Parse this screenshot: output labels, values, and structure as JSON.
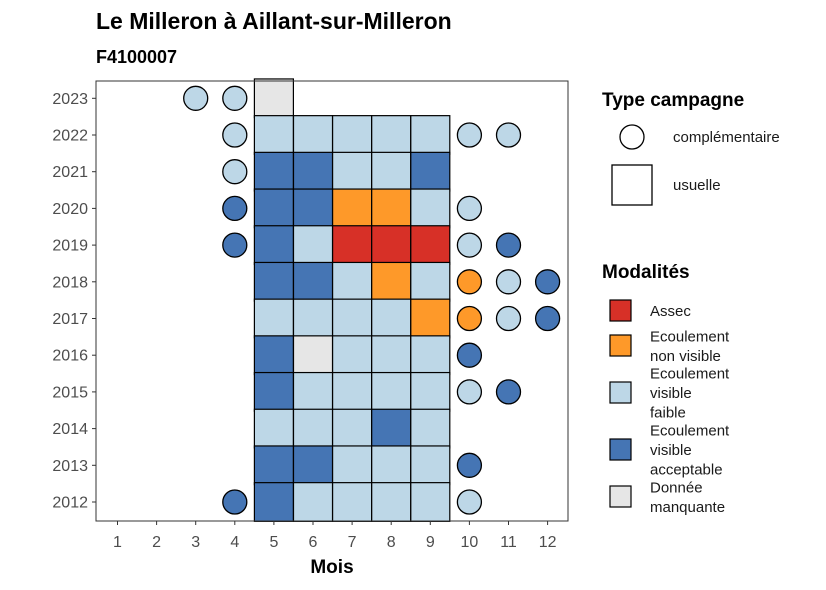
{
  "chart_data": {
    "type": "heatmap",
    "title": "Le Milleron à Aillant-sur-Milleron",
    "subtitle": "F4100007",
    "xlabel": "Mois",
    "ylabel": "",
    "x_ticks": [
      "1",
      "2",
      "3",
      "4",
      "5",
      "6",
      "7",
      "8",
      "9",
      "10",
      "11",
      "12"
    ],
    "y_ticks": [
      "2012",
      "2013",
      "2014",
      "2015",
      "2016",
      "2017",
      "2018",
      "2019",
      "2020",
      "2021",
      "2022",
      "2023"
    ],
    "colors": {
      "Assec": "#d73027",
      "Ecoulement non visible": "#fe9929",
      "Ecoulement visible faible": "#bdd7e7",
      "Ecoulement visible acceptable": "#4575b4",
      "Donnée manquante": "#e6e6e6"
    },
    "legend_campaign": {
      "title": "Type campagne",
      "items": [
        {
          "label": "complémentaire",
          "shape": "circle"
        },
        {
          "label": "usuelle",
          "shape": "square"
        }
      ]
    },
    "legend_modality": {
      "title": "Modalités",
      "items": [
        {
          "key": "Assec",
          "lines": [
            "Assec"
          ]
        },
        {
          "key": "Ecoulement non visible",
          "lines": [
            "Ecoulement",
            "non visible"
          ]
        },
        {
          "key": "Ecoulement visible faible",
          "lines": [
            "Ecoulement",
            "visible",
            "faible"
          ]
        },
        {
          "key": "Ecoulement visible acceptable",
          "lines": [
            "Ecoulement",
            "visible",
            "acceptable"
          ]
        },
        {
          "key": "Donnée manquante",
          "lines": [
            "Donnée",
            "manquante"
          ]
        }
      ]
    },
    "points": [
      {
        "year": 2023,
        "month": 3,
        "campaign": "complémentaire",
        "modality": "Ecoulement visible faible"
      },
      {
        "year": 2023,
        "month": 4,
        "campaign": "complémentaire",
        "modality": "Ecoulement visible faible"
      },
      {
        "year": 2023,
        "month": 5,
        "campaign": "usuelle",
        "modality": "Donnée manquante"
      },
      {
        "year": 2022,
        "month": 4,
        "campaign": "complémentaire",
        "modality": "Ecoulement visible faible"
      },
      {
        "year": 2022,
        "month": 5,
        "campaign": "usuelle",
        "modality": "Ecoulement visible faible"
      },
      {
        "year": 2022,
        "month": 6,
        "campaign": "usuelle",
        "modality": "Ecoulement visible faible"
      },
      {
        "year": 2022,
        "month": 7,
        "campaign": "usuelle",
        "modality": "Ecoulement visible faible"
      },
      {
        "year": 2022,
        "month": 8,
        "campaign": "usuelle",
        "modality": "Ecoulement visible faible"
      },
      {
        "year": 2022,
        "month": 9,
        "campaign": "usuelle",
        "modality": "Ecoulement visible faible"
      },
      {
        "year": 2022,
        "month": 10,
        "campaign": "complémentaire",
        "modality": "Ecoulement visible faible"
      },
      {
        "year": 2022,
        "month": 11,
        "campaign": "complémentaire",
        "modality": "Ecoulement visible faible"
      },
      {
        "year": 2021,
        "month": 4,
        "campaign": "complémentaire",
        "modality": "Ecoulement visible faible"
      },
      {
        "year": 2021,
        "month": 5,
        "campaign": "usuelle",
        "modality": "Ecoulement visible acceptable"
      },
      {
        "year": 2021,
        "month": 6,
        "campaign": "usuelle",
        "modality": "Ecoulement visible acceptable"
      },
      {
        "year": 2021,
        "month": 7,
        "campaign": "usuelle",
        "modality": "Ecoulement visible faible"
      },
      {
        "year": 2021,
        "month": 8,
        "campaign": "usuelle",
        "modality": "Ecoulement visible faible"
      },
      {
        "year": 2021,
        "month": 9,
        "campaign": "usuelle",
        "modality": "Ecoulement visible acceptable"
      },
      {
        "year": 2020,
        "month": 4,
        "campaign": "complémentaire",
        "modality": "Ecoulement visible acceptable"
      },
      {
        "year": 2020,
        "month": 5,
        "campaign": "usuelle",
        "modality": "Ecoulement visible acceptable"
      },
      {
        "year": 2020,
        "month": 6,
        "campaign": "usuelle",
        "modality": "Ecoulement visible acceptable"
      },
      {
        "year": 2020,
        "month": 7,
        "campaign": "usuelle",
        "modality": "Ecoulement non visible"
      },
      {
        "year": 2020,
        "month": 8,
        "campaign": "usuelle",
        "modality": "Ecoulement non visible"
      },
      {
        "year": 2020,
        "month": 9,
        "campaign": "usuelle",
        "modality": "Ecoulement visible faible"
      },
      {
        "year": 2020,
        "month": 10,
        "campaign": "complémentaire",
        "modality": "Ecoulement visible faible"
      },
      {
        "year": 2019,
        "month": 4,
        "campaign": "complémentaire",
        "modality": "Ecoulement visible acceptable"
      },
      {
        "year": 2019,
        "month": 5,
        "campaign": "usuelle",
        "modality": "Ecoulement visible acceptable"
      },
      {
        "year": 2019,
        "month": 6,
        "campaign": "usuelle",
        "modality": "Ecoulement visible faible"
      },
      {
        "year": 2019,
        "month": 7,
        "campaign": "usuelle",
        "modality": "Assec"
      },
      {
        "year": 2019,
        "month": 8,
        "campaign": "usuelle",
        "modality": "Assec"
      },
      {
        "year": 2019,
        "month": 9,
        "campaign": "usuelle",
        "modality": "Assec"
      },
      {
        "year": 2019,
        "month": 10,
        "campaign": "complémentaire",
        "modality": "Ecoulement visible faible"
      },
      {
        "year": 2019,
        "month": 11,
        "campaign": "complémentaire",
        "modality": "Ecoulement visible acceptable"
      },
      {
        "year": 2018,
        "month": 5,
        "campaign": "usuelle",
        "modality": "Ecoulement visible acceptable"
      },
      {
        "year": 2018,
        "month": 6,
        "campaign": "usuelle",
        "modality": "Ecoulement visible acceptable"
      },
      {
        "year": 2018,
        "month": 7,
        "campaign": "usuelle",
        "modality": "Ecoulement visible faible"
      },
      {
        "year": 2018,
        "month": 8,
        "campaign": "usuelle",
        "modality": "Ecoulement non visible"
      },
      {
        "year": 2018,
        "month": 9,
        "campaign": "usuelle",
        "modality": "Ecoulement visible faible"
      },
      {
        "year": 2018,
        "month": 10,
        "campaign": "complémentaire",
        "modality": "Ecoulement non visible"
      },
      {
        "year": 2018,
        "month": 11,
        "campaign": "complémentaire",
        "modality": "Ecoulement visible faible"
      },
      {
        "year": 2018,
        "month": 12,
        "campaign": "complémentaire",
        "modality": "Ecoulement visible acceptable"
      },
      {
        "year": 2017,
        "month": 5,
        "campaign": "usuelle",
        "modality": "Ecoulement visible faible"
      },
      {
        "year": 2017,
        "month": 6,
        "campaign": "usuelle",
        "modality": "Ecoulement visible faible"
      },
      {
        "year": 2017,
        "month": 7,
        "campaign": "usuelle",
        "modality": "Ecoulement visible faible"
      },
      {
        "year": 2017,
        "month": 8,
        "campaign": "usuelle",
        "modality": "Ecoulement visible faible"
      },
      {
        "year": 2017,
        "month": 9,
        "campaign": "usuelle",
        "modality": "Ecoulement non visible"
      },
      {
        "year": 2017,
        "month": 10,
        "campaign": "complémentaire",
        "modality": "Ecoulement non visible"
      },
      {
        "year": 2017,
        "month": 11,
        "campaign": "complémentaire",
        "modality": "Ecoulement visible faible"
      },
      {
        "year": 2017,
        "month": 12,
        "campaign": "complémentaire",
        "modality": "Ecoulement visible acceptable"
      },
      {
        "year": 2016,
        "month": 5,
        "campaign": "usuelle",
        "modality": "Ecoulement visible acceptable"
      },
      {
        "year": 2016,
        "month": 6,
        "campaign": "usuelle",
        "modality": "Donnée manquante"
      },
      {
        "year": 2016,
        "month": 7,
        "campaign": "usuelle",
        "modality": "Ecoulement visible faible"
      },
      {
        "year": 2016,
        "month": 8,
        "campaign": "usuelle",
        "modality": "Ecoulement visible faible"
      },
      {
        "year": 2016,
        "month": 9,
        "campaign": "usuelle",
        "modality": "Ecoulement visible faible"
      },
      {
        "year": 2016,
        "month": 10,
        "campaign": "complémentaire",
        "modality": "Ecoulement visible acceptable"
      },
      {
        "year": 2015,
        "month": 5,
        "campaign": "usuelle",
        "modality": "Ecoulement visible acceptable"
      },
      {
        "year": 2015,
        "month": 6,
        "campaign": "usuelle",
        "modality": "Ecoulement visible faible"
      },
      {
        "year": 2015,
        "month": 7,
        "campaign": "usuelle",
        "modality": "Ecoulement visible faible"
      },
      {
        "year": 2015,
        "month": 8,
        "campaign": "usuelle",
        "modality": "Ecoulement visible faible"
      },
      {
        "year": 2015,
        "month": 9,
        "campaign": "usuelle",
        "modality": "Ecoulement visible faible"
      },
      {
        "year": 2015,
        "month": 10,
        "campaign": "complémentaire",
        "modality": "Ecoulement visible faible"
      },
      {
        "year": 2015,
        "month": 11,
        "campaign": "complémentaire",
        "modality": "Ecoulement visible acceptable"
      },
      {
        "year": 2014,
        "month": 5,
        "campaign": "usuelle",
        "modality": "Ecoulement visible faible"
      },
      {
        "year": 2014,
        "month": 6,
        "campaign": "usuelle",
        "modality": "Ecoulement visible faible"
      },
      {
        "year": 2014,
        "month": 7,
        "campaign": "usuelle",
        "modality": "Ecoulement visible faible"
      },
      {
        "year": 2014,
        "month": 8,
        "campaign": "usuelle",
        "modality": "Ecoulement visible acceptable"
      },
      {
        "year": 2014,
        "month": 9,
        "campaign": "usuelle",
        "modality": "Ecoulement visible faible"
      },
      {
        "year": 2013,
        "month": 5,
        "campaign": "usuelle",
        "modality": "Ecoulement visible acceptable"
      },
      {
        "year": 2013,
        "month": 6,
        "campaign": "usuelle",
        "modality": "Ecoulement visible acceptable"
      },
      {
        "year": 2013,
        "month": 7,
        "campaign": "usuelle",
        "modality": "Ecoulement visible faible"
      },
      {
        "year": 2013,
        "month": 8,
        "campaign": "usuelle",
        "modality": "Ecoulement visible faible"
      },
      {
        "year": 2013,
        "month": 9,
        "campaign": "usuelle",
        "modality": "Ecoulement visible faible"
      },
      {
        "year": 2013,
        "month": 10,
        "campaign": "complémentaire",
        "modality": "Ecoulement visible acceptable"
      },
      {
        "year": 2012,
        "month": 4,
        "campaign": "complémentaire",
        "modality": "Ecoulement visible acceptable"
      },
      {
        "year": 2012,
        "month": 5,
        "campaign": "usuelle",
        "modality": "Ecoulement visible acceptable"
      },
      {
        "year": 2012,
        "month": 6,
        "campaign": "usuelle",
        "modality": "Ecoulement visible faible"
      },
      {
        "year": 2012,
        "month": 7,
        "campaign": "usuelle",
        "modality": "Ecoulement visible faible"
      },
      {
        "year": 2012,
        "month": 8,
        "campaign": "usuelle",
        "modality": "Ecoulement visible faible"
      },
      {
        "year": 2012,
        "month": 9,
        "campaign": "usuelle",
        "modality": "Ecoulement visible faible"
      },
      {
        "year": 2012,
        "month": 10,
        "campaign": "complémentaire",
        "modality": "Ecoulement visible faible"
      }
    ]
  }
}
